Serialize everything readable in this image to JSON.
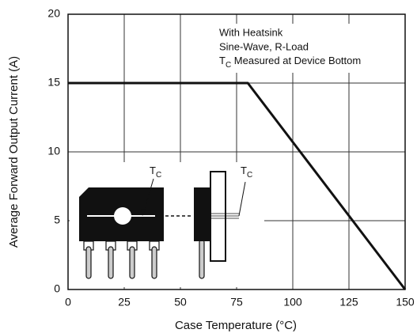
{
  "chart_data": {
    "type": "line",
    "x_label": "Case Temperature (°C)",
    "y_label": "Average Forward Output Current (A)",
    "annotations": [
      "With Heatsink",
      "Sine-Wave, R-Load"
    ],
    "annotation_tc": {
      "main": "T",
      "sub": "C",
      "rest": " Measured at Device Bottom"
    },
    "tc_label": {
      "main": "T",
      "sub": "C"
    },
    "x": [
      0,
      80,
      150
    ],
    "values": [
      15,
      15,
      0
    ],
    "color": "#111111",
    "xlim": [
      0,
      150
    ],
    "xticks": [
      0,
      25,
      50,
      75,
      100,
      125,
      150
    ],
    "ylim": [
      0,
      20
    ],
    "yticks": [
      0,
      5,
      10,
      15,
      20
    ],
    "grid": true
  }
}
